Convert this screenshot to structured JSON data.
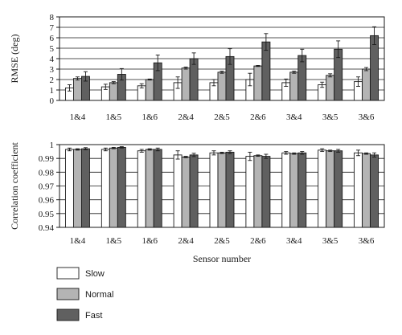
{
  "chart_data": [
    {
      "type": "bar",
      "ylabel": "RMSE (deg)",
      "xlabel": "",
      "categories": [
        "1&4",
        "1&5",
        "1&6",
        "2&4",
        "2&5",
        "2&6",
        "3&4",
        "3&5",
        "3&6"
      ],
      "ylim": [
        0,
        8
      ],
      "yticks": [
        0,
        1,
        2,
        3,
        4,
        5,
        6,
        7,
        8
      ],
      "ytick_labels": [
        "0",
        "1",
        "2",
        "3",
        "4",
        "5",
        "6",
        "7",
        "8"
      ],
      "grid": "horizontal",
      "series": [
        {
          "name": "Slow",
          "color": "#ffffff",
          "values": [
            1.2,
            1.3,
            1.4,
            1.7,
            1.7,
            2.0,
            1.7,
            1.5,
            1.8
          ],
          "errors": [
            0.3,
            0.25,
            0.2,
            0.55,
            0.3,
            0.6,
            0.35,
            0.25,
            0.45
          ]
        },
        {
          "name": "Normal",
          "color": "#b4b4b4",
          "values": [
            2.1,
            1.7,
            2.0,
            3.1,
            2.7,
            3.3,
            2.7,
            2.4,
            3.0
          ],
          "errors": [
            0.15,
            0.1,
            0.05,
            0.1,
            0.1,
            0.05,
            0.1,
            0.15,
            0.15
          ]
        },
        {
          "name": "Fast",
          "color": "#606060",
          "values": [
            2.3,
            2.5,
            3.6,
            4.0,
            4.2,
            5.6,
            4.3,
            4.9,
            6.2
          ],
          "errors": [
            0.45,
            0.55,
            0.75,
            0.55,
            0.75,
            0.8,
            0.6,
            0.8,
            0.85
          ]
        }
      ]
    },
    {
      "type": "bar",
      "ylabel": "Correlation coefficient",
      "xlabel": "Sensor number",
      "categories": [
        "1&4",
        "1&5",
        "1&6",
        "2&4",
        "2&5",
        "2&6",
        "3&4",
        "3&5",
        "3&6"
      ],
      "ylim": [
        0.94,
        1.0
      ],
      "yticks": [
        0.94,
        0.95,
        0.96,
        0.97,
        0.98,
        0.99,
        1.0
      ],
      "ytick_labels": [
        "0.94",
        "0.95",
        "0.96",
        "0.97",
        "0.98",
        "0.99",
        "1"
      ],
      "grid": "horizontal",
      "series": [
        {
          "name": "Slow",
          "color": "#ffffff",
          "values": [
            0.9965,
            0.9965,
            0.9955,
            0.9925,
            0.994,
            0.9915,
            0.994,
            0.996,
            0.994
          ],
          "errors": [
            0.001,
            0.001,
            0.001,
            0.003,
            0.0015,
            0.003,
            0.001,
            0.001,
            0.002
          ]
        },
        {
          "name": "Normal",
          "color": "#b4b4b4",
          "values": [
            0.9965,
            0.9975,
            0.9965,
            0.991,
            0.994,
            0.992,
            0.9935,
            0.9955,
            0.9935
          ],
          "errors": [
            0.0005,
            0.0005,
            0.0005,
            0.0005,
            0.0005,
            0.0005,
            0.0005,
            0.0005,
            0.0005
          ]
        },
        {
          "name": "Fast",
          "color": "#606060",
          "values": [
            0.997,
            0.998,
            0.9965,
            0.9925,
            0.9945,
            0.9915,
            0.994,
            0.9955,
            0.9925
          ],
          "errors": [
            0.0008,
            0.0005,
            0.001,
            0.0012,
            0.001,
            0.0015,
            0.001,
            0.001,
            0.0015
          ]
        }
      ]
    }
  ],
  "legend": {
    "placement": "bottom-left",
    "entries": [
      {
        "label": "Slow",
        "color": "#ffffff"
      },
      {
        "label": "Normal",
        "color": "#b4b4b4"
      },
      {
        "label": "Fast",
        "color": "#606060"
      }
    ]
  }
}
